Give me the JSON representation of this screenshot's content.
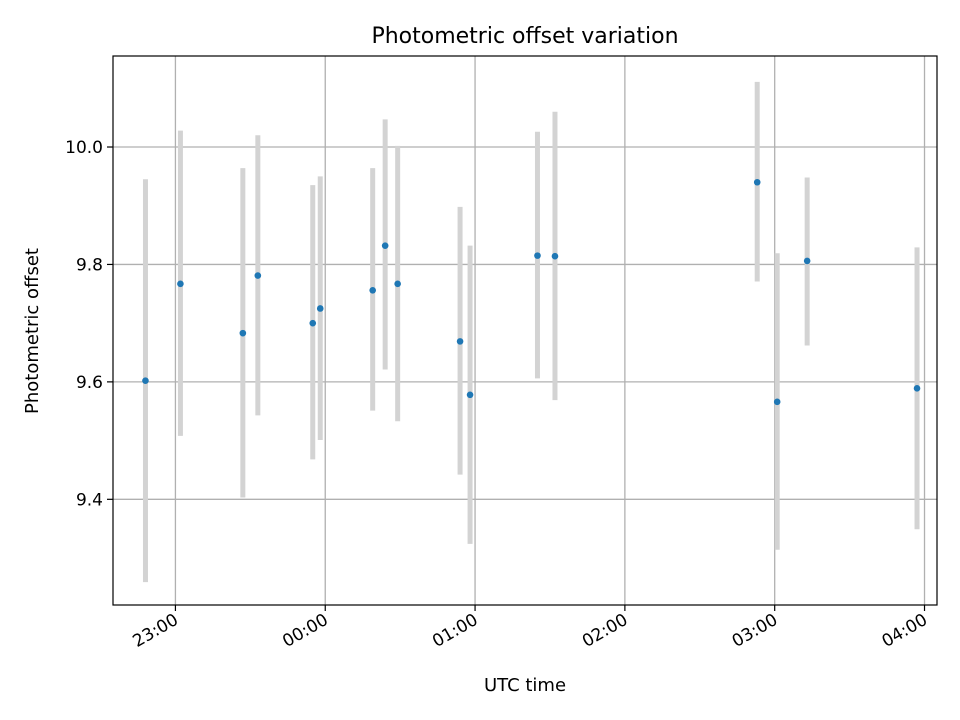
{
  "chart_data": {
    "type": "scatter",
    "title": "Photometric offset variation",
    "xlabel": "UTC time",
    "ylabel": "Photometric offset",
    "x_axis_type": "time",
    "x_range": [
      "22:35",
      "04:05"
    ],
    "ylim": [
      9.22,
      10.155
    ],
    "x_ticks": [
      "23:00",
      "00:00",
      "01:00",
      "02:00",
      "03:00",
      "04:00"
    ],
    "y_ticks": [
      9.4,
      9.6,
      9.8,
      10.0
    ],
    "y_tick_labels": [
      "9.4",
      "9.6",
      "9.8",
      "10.0"
    ],
    "grid": true,
    "colors": {
      "point": "#1f77b4",
      "errorbar": "#d3d3d3",
      "grid": "#b0b0b0"
    },
    "points": [
      {
        "x": "22:48",
        "y": 9.602,
        "ylo": 9.259,
        "yhi": 9.945
      },
      {
        "x": "23:02",
        "y": 9.767,
        "ylo": 9.508,
        "yhi": 10.028
      },
      {
        "x": "23:27",
        "y": 9.683,
        "ylo": 9.403,
        "yhi": 9.964
      },
      {
        "x": "23:33",
        "y": 9.781,
        "ylo": 9.543,
        "yhi": 10.02
      },
      {
        "x": "23:55",
        "y": 9.7,
        "ylo": 9.468,
        "yhi": 9.935
      },
      {
        "x": "23:58",
        "y": 9.725,
        "ylo": 9.501,
        "yhi": 9.95
      },
      {
        "x": "00:19",
        "y": 9.756,
        "ylo": 9.551,
        "yhi": 9.964
      },
      {
        "x": "00:24",
        "y": 9.832,
        "ylo": 9.621,
        "yhi": 10.047
      },
      {
        "x": "00:29",
        "y": 9.767,
        "ylo": 9.533,
        "yhi": 10.002
      },
      {
        "x": "00:54",
        "y": 9.669,
        "ylo": 9.442,
        "yhi": 9.898
      },
      {
        "x": "00:58",
        "y": 9.578,
        "ylo": 9.324,
        "yhi": 9.832
      },
      {
        "x": "01:25",
        "y": 9.815,
        "ylo": 9.606,
        "yhi": 10.026
      },
      {
        "x": "01:32",
        "y": 9.814,
        "ylo": 9.569,
        "yhi": 10.06
      },
      {
        "x": "02:53",
        "y": 9.94,
        "ylo": 9.771,
        "yhi": 10.111
      },
      {
        "x": "03:01",
        "y": 9.566,
        "ylo": 9.314,
        "yhi": 9.819
      },
      {
        "x": "03:13",
        "y": 9.806,
        "ylo": 9.662,
        "yhi": 9.948
      },
      {
        "x": "03:57",
        "y": 9.589,
        "ylo": 9.349,
        "yhi": 9.829
      }
    ]
  }
}
